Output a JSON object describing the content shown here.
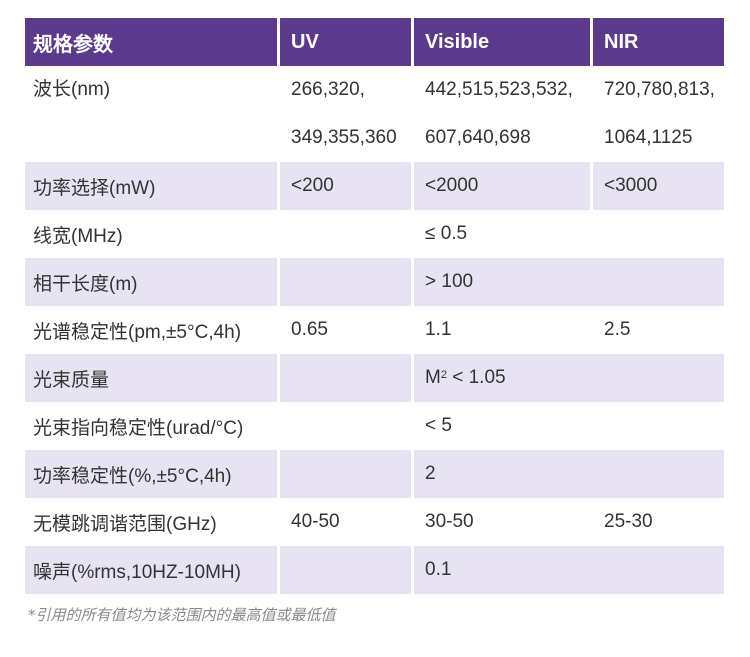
{
  "headers": [
    "规格参数",
    "UV",
    "Visible",
    "NIR"
  ],
  "rows": [
    {
      "label": "波长(nm)",
      "uv": [
        "266,320,",
        "349,355,360"
      ],
      "vis": [
        "442,515,523,532,",
        "607,640,698"
      ],
      "nir": [
        "720,780,813,",
        "1064,1125"
      ]
    },
    {
      "label": "功率选择(mW)",
      "uv": "<200",
      "vis": "<2000",
      "nir": "<3000"
    },
    {
      "label": "线宽(MHz)",
      "span": "≤  0.5"
    },
    {
      "label": "相干长度(m)",
      "span": ">  100"
    },
    {
      "label": "光谱稳定性(pm,±5°C,4h)",
      "uv": "0.65",
      "vis": "1.1",
      "nir": "2.5"
    },
    {
      "label": "光束质量",
      "span_pre": "M",
      "span_sup": "2",
      "span_post": " < 1.05"
    },
    {
      "label": "光束指向稳定性(urad/°C)",
      "span": " < 5"
    },
    {
      "label": "功率稳定性(%,±5°C,4h)",
      "span": "2"
    },
    {
      "label": "无模跳调谐范围(GHz)",
      "uv": "40-50",
      "vis": "30-50",
      "nir": "25-30"
    },
    {
      "label": "噪声(%rms,10HZ-10MH)",
      "span": "0.1"
    }
  ],
  "footnote": "*引用的所有值均为该范围内的最高值或最低值",
  "colors": {
    "header_bg": "#5b3a8d",
    "stripe": "#e8e3f2"
  }
}
